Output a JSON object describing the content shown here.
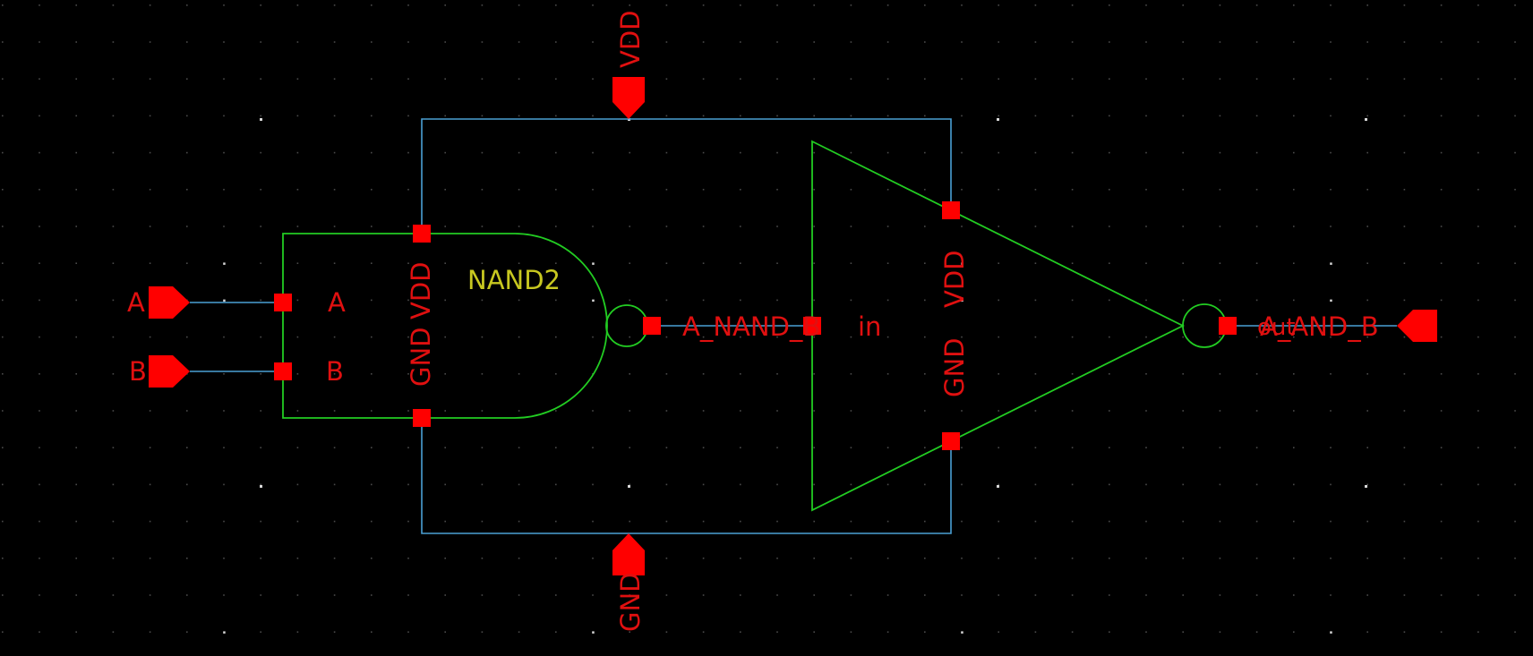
{
  "colors": {
    "background": "#000000",
    "grid_dot": "#4a4a4a",
    "grid_dot_major": "#d8d8d8",
    "wire": "#4a9fd4",
    "symbol": "#22cc22",
    "pin": "#ff0000",
    "pin_label": "#e01010",
    "instance_name": "#c8c820"
  },
  "schematic": {
    "title": "NAND2",
    "supply_pins": {
      "vdd": "VDD",
      "gnd": "GND"
    },
    "input_pins": {
      "a": "A",
      "b": "B"
    },
    "output_pin": "A_AND_B",
    "nand": {
      "pin_a": "A",
      "pin_b": "B",
      "pin_vdd": "VDD",
      "pin_gnd": "GND"
    },
    "inverter": {
      "pin_in": "in",
      "pin_out": "out",
      "pin_vdd": "VDD",
      "pin_gnd": "GND"
    },
    "internal_net": "A_NAND_B"
  }
}
